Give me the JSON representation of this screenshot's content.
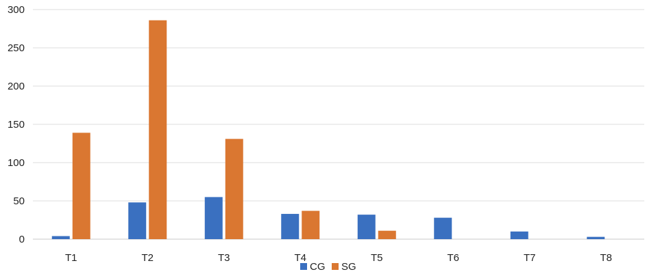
{
  "chart_data": {
    "type": "bar",
    "categories": [
      "T1",
      "T2",
      "T3",
      "T4",
      "T5",
      "T6",
      "T7",
      "T8"
    ],
    "series": [
      {
        "name": "CG",
        "color": "#3a70c0",
        "values": [
          4,
          48,
          55,
          33,
          32,
          28,
          10,
          3
        ]
      },
      {
        "name": "SG",
        "color": "#da7731",
        "values": [
          139,
          286,
          131,
          37,
          11,
          0,
          0,
          0
        ]
      }
    ],
    "ylim": [
      0,
      300
    ],
    "yticks": [
      "0",
      "50",
      "100",
      "150",
      "200",
      "250",
      "300"
    ],
    "grid": true,
    "legend": "bottom-center"
  }
}
